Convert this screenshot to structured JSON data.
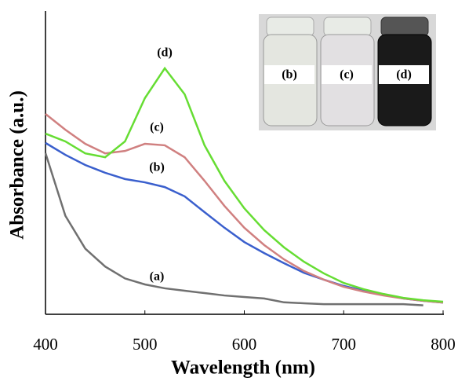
{
  "chart_data": {
    "type": "line",
    "xlabel": "Wavelength (nm)",
    "ylabel": "Absorbance (a.u.)",
    "x": [
      400,
      420,
      440,
      460,
      480,
      500,
      520,
      540,
      560,
      580,
      600,
      620,
      640,
      660,
      680,
      700,
      720,
      740,
      760,
      780,
      800
    ],
    "xlim": [
      400,
      800
    ],
    "xticks": [
      400,
      500,
      600,
      700,
      800
    ],
    "ylim": [
      0,
      1
    ],
    "series": [
      {
        "name": "(a)",
        "color": "#707070",
        "values": [
          0.54,
          0.33,
          0.22,
          0.16,
          0.12,
          0.1,
          0.087,
          0.079,
          0.071,
          0.063,
          0.058,
          0.053,
          0.04,
          0.037,
          0.034,
          0.034,
          0.034,
          0.034,
          0.034,
          0.03,
          null
        ]
      },
      {
        "name": "(b)",
        "color": "#3a5fcd",
        "values": [
          0.574,
          0.534,
          0.5,
          0.474,
          0.453,
          0.442,
          0.426,
          0.395,
          0.342,
          0.29,
          0.242,
          0.205,
          0.171,
          0.139,
          0.116,
          0.095,
          0.079,
          0.066,
          0.053,
          0.045,
          0.039
        ]
      },
      {
        "name": "(c)",
        "color": "#d08080",
        "values": [
          0.671,
          0.618,
          0.571,
          0.539,
          0.547,
          0.571,
          0.566,
          0.526,
          0.447,
          0.363,
          0.29,
          0.232,
          0.184,
          0.145,
          0.116,
          0.092,
          0.076,
          0.063,
          0.053,
          0.045,
          0.039
        ]
      },
      {
        "name": "(d)",
        "color": "#66dd33",
        "values": [
          0.605,
          0.579,
          0.539,
          0.526,
          0.579,
          0.724,
          0.824,
          0.737,
          0.566,
          0.447,
          0.355,
          0.282,
          0.224,
          0.176,
          0.137,
          0.105,
          0.084,
          0.068,
          0.055,
          0.047,
          0.042
        ]
      }
    ],
    "inset_labels": [
      "(b)",
      "(c)",
      "(d)"
    ]
  }
}
